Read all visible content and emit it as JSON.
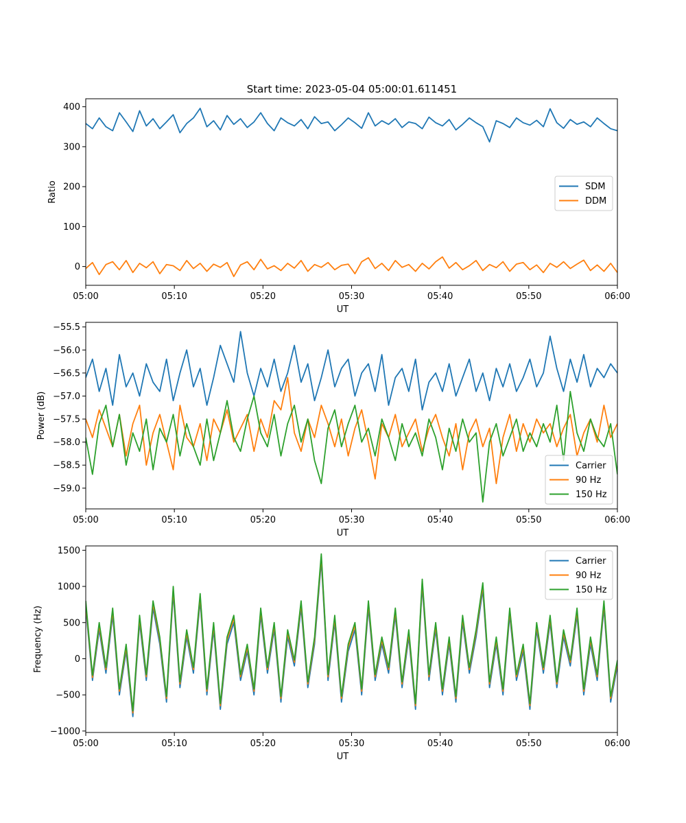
{
  "figure": {
    "title": "Start time: 2023-05-04 05:00:01.611451"
  },
  "colors": {
    "blue": "#1f77b4",
    "orange": "#ff7f0e",
    "green": "#2ca02c"
  },
  "chart_data": [
    {
      "type": "line",
      "title": "Start time: 2023-05-04 05:00:01.611451",
      "xlabel": "UT",
      "ylabel": "Ratio",
      "xlim_minutes": [
        0,
        60
      ],
      "ylim": [
        -47,
        420
      ],
      "xticks": [
        "05:00",
        "05:10",
        "05:20",
        "05:30",
        "05:40",
        "05:50",
        "06:00"
      ],
      "yticks": [
        0,
        100,
        200,
        300,
        400
      ],
      "legend_location": "center-right",
      "grid": false,
      "series": [
        {
          "name": "SDM",
          "color": "#1f77b4",
          "values": [
            358,
            345,
            372,
            350,
            340,
            385,
            362,
            338,
            390,
            352,
            370,
            345,
            362,
            380,
            335,
            358,
            372,
            396,
            350,
            365,
            342,
            378,
            356,
            370,
            348,
            362,
            385,
            358,
            340,
            372,
            360,
            352,
            368,
            345,
            375,
            358,
            362,
            340,
            355,
            372,
            360,
            346,
            385,
            352,
            365,
            356,
            370,
            348,
            362,
            358,
            345,
            374,
            360,
            352,
            368,
            342,
            356,
            372,
            360,
            350,
            312,
            365,
            358,
            348,
            372,
            360,
            354,
            366,
            350,
            395,
            360,
            346,
            368,
            356,
            362,
            350,
            372,
            358,
            345,
            340
          ]
        },
        {
          "name": "DDM",
          "color": "#ff7f0e",
          "values": [
            -5,
            10,
            -20,
            5,
            12,
            -8,
            15,
            -15,
            8,
            -3,
            12,
            -18,
            5,
            2,
            -10,
            15,
            -5,
            8,
            -12,
            6,
            -2,
            10,
            -25,
            4,
            12,
            -8,
            18,
            -6,
            2,
            -10,
            8,
            -4,
            15,
            -12,
            5,
            -2,
            10,
            -8,
            3,
            6,
            -18,
            12,
            22,
            -5,
            8,
            -10,
            15,
            -2,
            5,
            -12,
            8,
            -6,
            12,
            24,
            -4,
            10,
            -8,
            2,
            15,
            -10,
            5,
            -3,
            12,
            -12,
            6,
            10,
            -8,
            4,
            -15,
            8,
            -2,
            12,
            -5,
            6,
            16,
            -10,
            4,
            -12,
            8,
            -15
          ]
        }
      ]
    },
    {
      "type": "line",
      "xlabel": "UT",
      "ylabel": "Power (dB)",
      "xlim_minutes": [
        0,
        60
      ],
      "ylim": [
        -59.45,
        -55.4
      ],
      "xticks": [
        "05:00",
        "05:10",
        "05:20",
        "05:30",
        "05:40",
        "05:50",
        "06:00"
      ],
      "yticks": [
        -59.0,
        -58.5,
        -58.0,
        -57.5,
        -57.0,
        -56.5,
        -56.0,
        -55.5
      ],
      "yticklabels": [
        "−59.0",
        "−58.5",
        "−58.0",
        "−57.5",
        "−57.0",
        "−56.5",
        "−56.0",
        "−55.5"
      ],
      "legend_location": "lower-right",
      "grid": false,
      "series": [
        {
          "name": "Carrier",
          "color": "#1f77b4",
          "values": [
            -56.6,
            -56.2,
            -56.9,
            -56.4,
            -57.2,
            -56.1,
            -56.8,
            -56.5,
            -57.0,
            -56.3,
            -56.7,
            -56.9,
            -56.2,
            -57.1,
            -56.5,
            -56.0,
            -56.8,
            -56.4,
            -57.2,
            -56.6,
            -55.9,
            -56.3,
            -56.7,
            -55.6,
            -56.5,
            -57.0,
            -56.4,
            -56.8,
            -56.2,
            -56.9,
            -56.5,
            -55.9,
            -56.7,
            -56.3,
            -57.1,
            -56.6,
            -56.0,
            -56.8,
            -56.4,
            -56.2,
            -57.0,
            -56.5,
            -56.3,
            -56.9,
            -56.1,
            -57.2,
            -56.6,
            -56.4,
            -56.9,
            -56.2,
            -57.3,
            -56.7,
            -56.5,
            -56.9,
            -56.3,
            -57.0,
            -56.6,
            -56.2,
            -56.9,
            -56.5,
            -57.1,
            -56.4,
            -56.8,
            -56.3,
            -56.9,
            -56.6,
            -56.2,
            -56.8,
            -56.5,
            -55.7,
            -56.4,
            -56.9,
            -56.2,
            -56.7,
            -56.1,
            -56.8,
            -56.4,
            -56.6,
            -56.3,
            -56.5
          ]
        },
        {
          "name": "90 Hz",
          "color": "#ff7f0e",
          "values": [
            -57.5,
            -57.9,
            -57.3,
            -57.7,
            -58.1,
            -57.4,
            -58.3,
            -57.6,
            -57.2,
            -58.5,
            -57.8,
            -57.4,
            -58.0,
            -58.6,
            -57.2,
            -57.9,
            -58.1,
            -57.6,
            -58.4,
            -57.5,
            -57.8,
            -57.3,
            -58.0,
            -57.7,
            -57.4,
            -58.2,
            -57.5,
            -57.9,
            -57.1,
            -57.3,
            -56.6,
            -57.8,
            -58.2,
            -57.5,
            -57.9,
            -57.2,
            -57.6,
            -58.1,
            -57.5,
            -58.3,
            -57.7,
            -57.3,
            -58.0,
            -58.8,
            -57.6,
            -57.9,
            -57.4,
            -58.1,
            -57.8,
            -57.5,
            -58.2,
            -57.7,
            -57.4,
            -57.9,
            -58.3,
            -57.6,
            -58.6,
            -57.8,
            -57.5,
            -58.1,
            -57.7,
            -58.9,
            -57.9,
            -57.4,
            -58.2,
            -57.6,
            -58.0,
            -57.5,
            -57.8,
            -57.6,
            -58.1,
            -57.7,
            -57.4,
            -58.3,
            -57.8,
            -57.5,
            -58.0,
            -57.2,
            -57.9,
            -57.6
          ]
        },
        {
          "name": "150 Hz",
          "color": "#2ca02c",
          "values": [
            -57.9,
            -58.7,
            -57.6,
            -57.2,
            -58.1,
            -57.4,
            -58.5,
            -57.8,
            -58.2,
            -57.5,
            -58.6,
            -57.7,
            -58.0,
            -57.4,
            -58.3,
            -57.6,
            -58.1,
            -58.5,
            -57.5,
            -58.4,
            -57.8,
            -57.1,
            -57.9,
            -58.2,
            -57.5,
            -57.0,
            -57.8,
            -58.1,
            -57.4,
            -58.3,
            -57.6,
            -57.2,
            -58.0,
            -57.5,
            -58.4,
            -58.9,
            -57.7,
            -57.3,
            -58.1,
            -57.6,
            -57.2,
            -58.0,
            -57.7,
            -58.3,
            -57.5,
            -57.9,
            -58.4,
            -57.6,
            -58.1,
            -57.8,
            -58.3,
            -57.5,
            -57.9,
            -58.6,
            -57.7,
            -58.2,
            -57.5,
            -58.0,
            -57.8,
            -59.3,
            -58.0,
            -57.6,
            -58.3,
            -57.9,
            -57.5,
            -58.2,
            -57.8,
            -58.1,
            -57.6,
            -58.0,
            -57.2,
            -58.4,
            -56.9,
            -57.8,
            -58.2,
            -57.5,
            -57.9,
            -58.1,
            -57.6,
            -58.7
          ]
        }
      ]
    },
    {
      "type": "line",
      "xlabel": "UT",
      "ylabel": "Frequency (Hz)",
      "xlim_minutes": [
        0,
        60
      ],
      "ylim": [
        -1020,
        1560
      ],
      "xticks": [
        "05:00",
        "05:10",
        "05:20",
        "05:30",
        "05:40",
        "05:50",
        "06:00"
      ],
      "yticks": [
        -1000,
        -500,
        0,
        500,
        1000,
        1500
      ],
      "yticklabels": [
        "−1000",
        "−500",
        "0",
        "500",
        "1000",
        "1500"
      ],
      "legend_location": "upper-right",
      "grid": false,
      "series": [
        {
          "name": "Carrier",
          "color": "#1f77b4",
          "values": [
            700,
            -300,
            400,
            -200,
            600,
            -500,
            100,
            -800,
            500,
            -300,
            700,
            200,
            -600,
            900,
            -400,
            300,
            -200,
            800,
            -500,
            400,
            -700,
            200,
            500,
            -300,
            100,
            -500,
            600,
            -200,
            400,
            -600,
            300,
            -100,
            700,
            -400,
            200,
            1350,
            -300,
            500,
            -600,
            100,
            400,
            -500,
            700,
            -300,
            200,
            -200,
            600,
            -400,
            300,
            -700,
            1000,
            -300,
            400,
            -500,
            200,
            -600,
            500,
            -200,
            300,
            950,
            -400,
            200,
            -500,
            600,
            -300,
            100,
            -700,
            400,
            -200,
            500,
            -400,
            300,
            -100,
            600,
            -500,
            200,
            -300,
            700,
            -600,
            -100
          ]
        },
        {
          "name": "90 Hz",
          "color": "#ff7f0e",
          "values": [
            760,
            -260,
            460,
            -150,
            660,
            -450,
            160,
            -750,
            560,
            -250,
            760,
            260,
            -550,
            960,
            -350,
            360,
            -150,
            860,
            -450,
            460,
            -650,
            260,
            560,
            -250,
            160,
            -450,
            660,
            -150,
            460,
            -550,
            360,
            -50,
            760,
            -350,
            260,
            1410,
            -250,
            560,
            -550,
            160,
            460,
            -450,
            760,
            -250,
            260,
            -150,
            660,
            -350,
            360,
            -650,
            1060,
            -250,
            460,
            -450,
            260,
            -550,
            560,
            -150,
            360,
            1010,
            -350,
            260,
            -450,
            660,
            -250,
            160,
            -650,
            460,
            -150,
            560,
            -350,
            360,
            -50,
            660,
            -450,
            260,
            -250,
            760,
            -550,
            -50
          ]
        },
        {
          "name": "150 Hz",
          "color": "#2ca02c",
          "values": [
            800,
            -230,
            500,
            -120,
            700,
            -420,
            200,
            -720,
            600,
            -220,
            800,
            300,
            -520,
            1000,
            -320,
            400,
            -120,
            900,
            -420,
            500,
            -620,
            300,
            600,
            -220,
            200,
            -420,
            700,
            -120,
            500,
            -520,
            400,
            -20,
            800,
            -320,
            300,
            1450,
            -220,
            600,
            -520,
            200,
            500,
            -420,
            800,
            -220,
            300,
            -120,
            700,
            -320,
            400,
            -620,
            1100,
            -220,
            500,
            -420,
            300,
            -520,
            600,
            -120,
            400,
            1050,
            -320,
            300,
            -420,
            700,
            -220,
            200,
            -620,
            500,
            -120,
            600,
            -320,
            400,
            -20,
            700,
            -420,
            300,
            -220,
            800,
            -520,
            -20
          ]
        }
      ]
    }
  ]
}
